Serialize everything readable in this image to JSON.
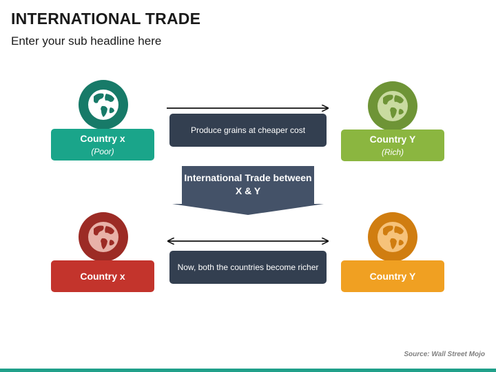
{
  "header": {
    "title": "INTERNATIONAL TRADE",
    "subtitle": "Enter your sub headline here"
  },
  "countries": {
    "top_left": {
      "name": "Country x",
      "note": "(Poor)",
      "color": "#1aa58a",
      "globe_color": "#177a68"
    },
    "top_right": {
      "name": "Country Y",
      "note": "(Rich)",
      "color": "#8bb640",
      "globe_color": "#6e9436"
    },
    "bottom_left": {
      "name": "Country x",
      "color": "#c3342c",
      "globe_color": "#9c2b25"
    },
    "bottom_right": {
      "name": "Country Y",
      "color": "#f0a022",
      "globe_color": "#d07d10"
    }
  },
  "flows": {
    "top_label": "Produce grains at cheaper cost",
    "top_arrow": "one-way right",
    "bottom_label": "Now, both the countries become richer",
    "bottom_arrow": "two-way"
  },
  "center": {
    "label": "International Trade between X & Y",
    "color": "#445268"
  },
  "icons": {
    "globe": "globe-icon"
  },
  "footer": {
    "source": "Source: Wall Street Mojo",
    "bar_color": "#20a08a"
  }
}
